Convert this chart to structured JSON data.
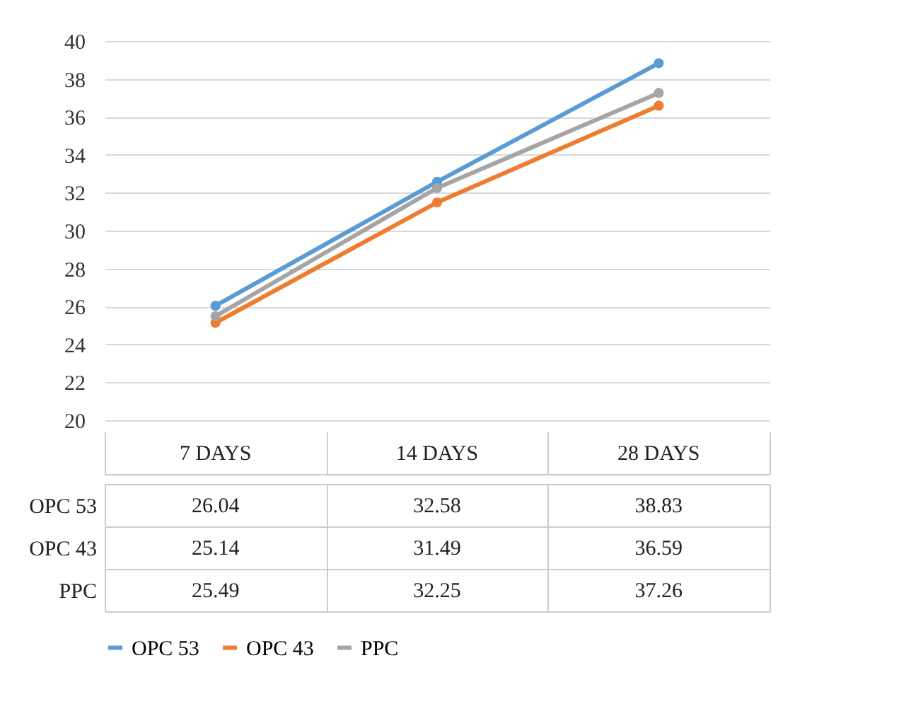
{
  "chart_data": {
    "type": "line",
    "categories": [
      "7 DAYS",
      "14 DAYS",
      "28 DAYS"
    ],
    "series": [
      {
        "name": "OPC 53",
        "color": "#5b9bd5",
        "values": [
          26.04,
          32.58,
          38.83
        ]
      },
      {
        "name": "OPC 43",
        "color": "#ed7d31",
        "values": [
          25.14,
          31.49,
          36.59
        ]
      },
      {
        "name": "PPC",
        "color": "#a5a5a5",
        "values": [
          25.49,
          32.25,
          37.26
        ]
      }
    ],
    "ylim": [
      20,
      40
    ],
    "yticks": [
      20,
      22,
      24,
      26,
      28,
      30,
      32,
      34,
      36,
      38,
      40
    ],
    "grid": "y",
    "legend": "bottom",
    "marker": "circle",
    "data_labels": true
  }
}
